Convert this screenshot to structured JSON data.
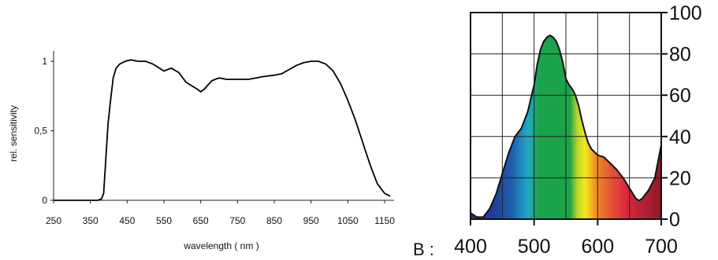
{
  "caption_fragment": "                                    ",
  "panel_b_label": "B :",
  "chart_data": [
    {
      "type": "line",
      "title": "",
      "xlabel": "wavelength ( nm )",
      "ylabel": "rel. sensitivity",
      "xlim": [
        250,
        1175
      ],
      "ylim": [
        0,
        1.1
      ],
      "x_ticks": [
        250,
        350,
        450,
        550,
        650,
        750,
        850,
        950,
        1050,
        1150
      ],
      "x_tick_labels": [
        "250",
        "350",
        "450",
        "550",
        "650",
        "750",
        "850",
        "950",
        "1050",
        "1150"
      ],
      "y_ticks": [
        0,
        0.5,
        1
      ],
      "y_tick_labels": [
        "0",
        "0,5",
        "1"
      ],
      "grid": false,
      "series": [
        {
          "x": [
            250,
            370,
            380,
            386,
            392,
            398,
            404,
            412,
            420,
            430,
            445,
            460,
            480,
            500,
            520,
            550,
            570,
            590,
            610,
            640,
            650,
            660,
            680,
            700,
            720,
            750,
            780,
            800,
            820,
            850,
            870,
            890,
            910,
            930,
            950,
            970,
            990,
            1010,
            1030,
            1050,
            1070,
            1090,
            1110,
            1130,
            1150,
            1165
          ],
          "y": [
            0,
            0,
            0.01,
            0.05,
            0.3,
            0.55,
            0.7,
            0.88,
            0.95,
            0.98,
            1.0,
            1.01,
            1.0,
            1.0,
            0.98,
            0.93,
            0.95,
            0.92,
            0.85,
            0.8,
            0.78,
            0.8,
            0.86,
            0.88,
            0.87,
            0.87,
            0.87,
            0.88,
            0.89,
            0.9,
            0.91,
            0.94,
            0.97,
            0.99,
            1.0,
            1.0,
            0.98,
            0.93,
            0.84,
            0.72,
            0.58,
            0.42,
            0.26,
            0.12,
            0.05,
            0.03
          ]
        }
      ]
    },
    {
      "type": "area",
      "title": "",
      "xlabel": "",
      "ylabel": "",
      "xlim": [
        400,
        700
      ],
      "ylim": [
        0,
        100
      ],
      "x_ticks": [
        400,
        500,
        600,
        700
      ],
      "x_tick_labels": [
        "400",
        "500",
        "600",
        "700"
      ],
      "y_ticks": [
        0,
        20,
        40,
        60,
        80,
        100
      ],
      "y_tick_labels": [
        "0",
        "20",
        "40",
        "60",
        "80",
        "100"
      ],
      "y_axis_side": "right",
      "grid": true,
      "fill": "visible-spectrum gradient",
      "series": [
        {
          "x": [
            400,
            410,
            420,
            430,
            440,
            450,
            460,
            470,
            480,
            490,
            500,
            505,
            510,
            515,
            520,
            525,
            530,
            535,
            540,
            545,
            550,
            555,
            560,
            565,
            570,
            575,
            580,
            585,
            590,
            600,
            610,
            620,
            630,
            640,
            650,
            660,
            665,
            670,
            680,
            690,
            700
          ],
          "y": [
            3,
            1,
            1,
            5,
            12,
            22,
            32,
            40,
            44,
            52,
            65,
            75,
            82,
            86,
            88,
            89,
            88,
            86,
            82,
            76,
            68,
            65,
            63,
            60,
            55,
            48,
            42,
            37,
            34,
            31,
            30,
            27,
            24,
            20,
            15,
            10,
            9,
            10,
            14,
            20,
            36
          ]
        }
      ],
      "colors": {
        "violet": "#2a2a7a",
        "blue": "#1f5fb0",
        "cyan": "#22a8c8",
        "green": "#1aa34a",
        "yellow": "#f2ea1c",
        "orange": "#f08a24",
        "red": "#d9283c",
        "dark_red": "#8b1a2a"
      }
    }
  ]
}
